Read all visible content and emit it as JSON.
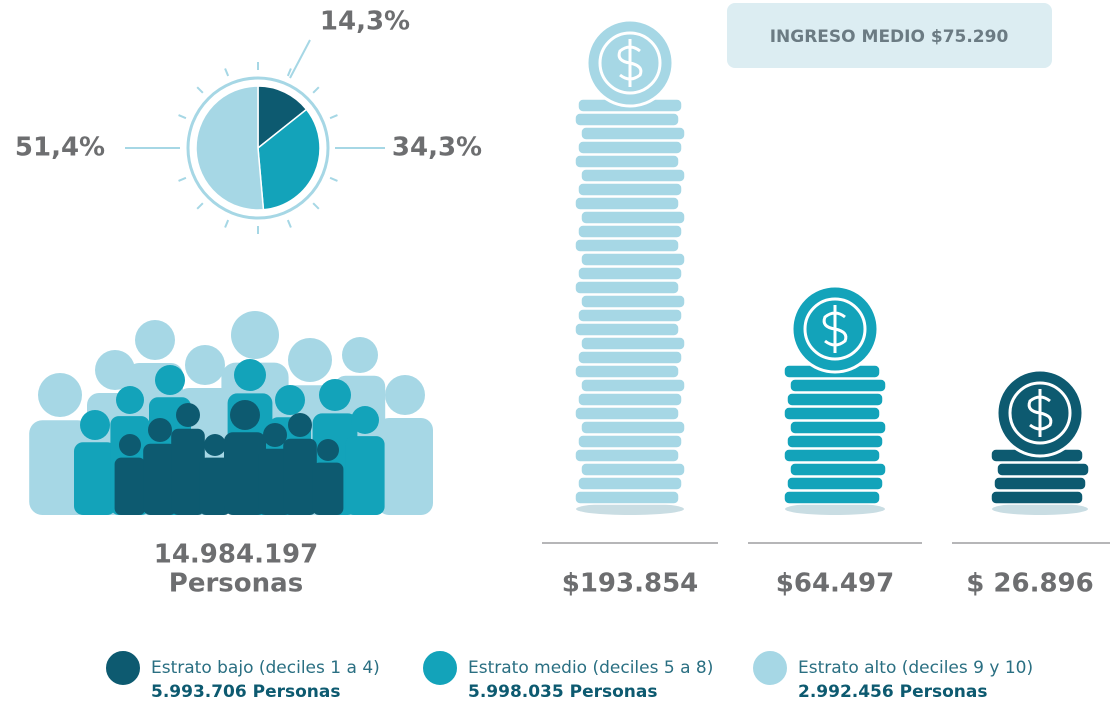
{
  "chart_data": [
    {
      "type": "pie",
      "values": [
        14.3,
        34.3,
        51.4
      ],
      "value_labels": [
        "14,3%",
        "34,3%",
        "51,4%"
      ],
      "colors": [
        "#0d5a70",
        "#13a3ba",
        "#a6d7e5"
      ]
    },
    {
      "type": "coin-stack",
      "title": "INGRESO MEDIO $75.290",
      "values": [
        193854,
        64497,
        26896
      ],
      "value_labels": [
        "$193.854",
        "$64.497",
        "$ 26.896"
      ],
      "colors": [
        "#a6d7e5",
        "#13a3ba",
        "#0d5a70"
      ]
    }
  ],
  "population": {
    "total": "14.984.197",
    "unit": "Personas"
  },
  "legend": [
    {
      "name": "Estrato bajo (deciles 1 a 4)",
      "persons": "5.993.706 Personas",
      "color": "#0d5a70"
    },
    {
      "name": "Estrato medio (deciles 5 a 8)",
      "persons": "5.998.035 Personas",
      "color": "#13a3ba"
    },
    {
      "name": "Estrato alto (deciles 9 y 10)",
      "persons": "2.992.456 Personas",
      "color": "#a6d7e5"
    }
  ]
}
